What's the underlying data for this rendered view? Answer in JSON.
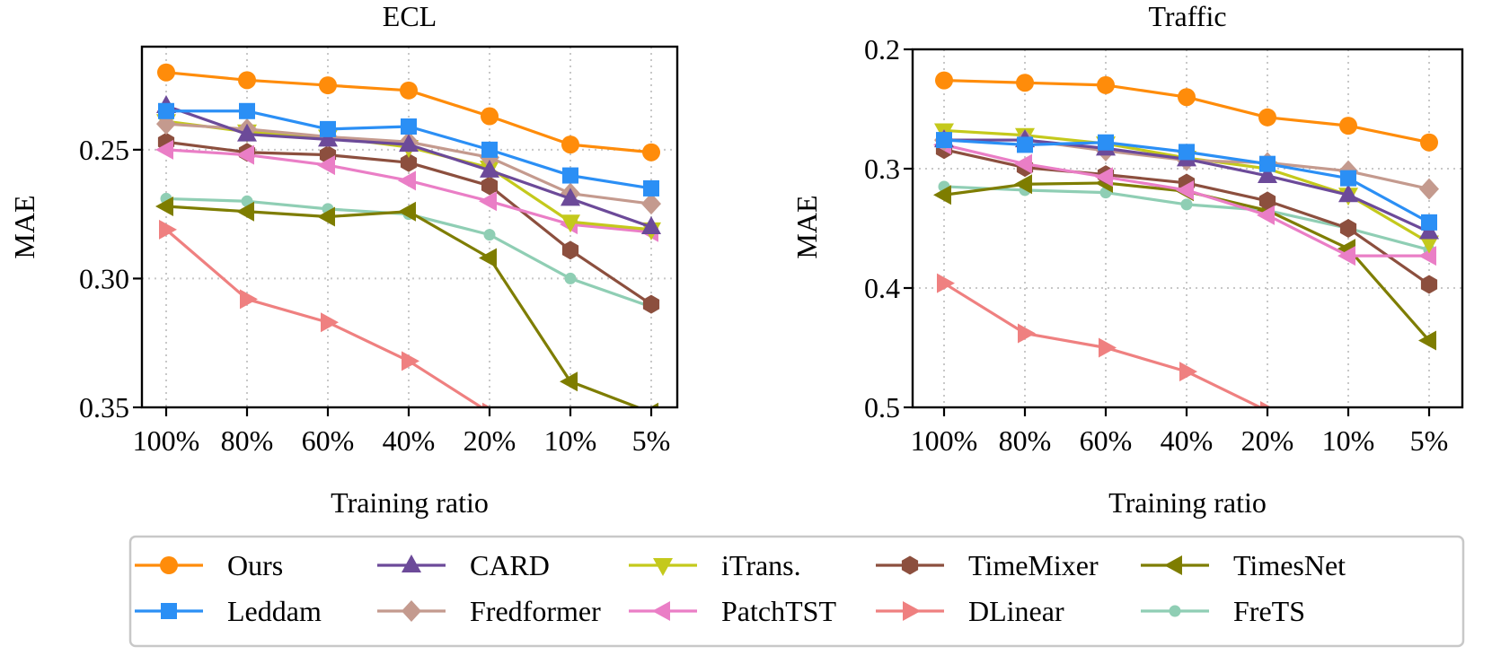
{
  "figure": {
    "categories": [
      "100%",
      "80%",
      "60%",
      "40%",
      "20%",
      "10%",
      "5%"
    ],
    "xlabel": "Training ratio",
    "ylabel": "MAE"
  },
  "series_styles": [
    {
      "name": "Ours",
      "color": "#ff8c0a",
      "marker": "circle"
    },
    {
      "name": "Leddam",
      "color": "#2b8ff5",
      "marker": "square"
    },
    {
      "name": "CARD",
      "color": "#6c4a99",
      "marker": "triangle-up"
    },
    {
      "name": "Fredformer",
      "color": "#c49a8e",
      "marker": "diamond"
    },
    {
      "name": "iTrans.",
      "color": "#c4c91c",
      "marker": "triangle-down"
    },
    {
      "name": "PatchTST",
      "color": "#ea7ec6",
      "marker": "triangle-left"
    },
    {
      "name": "TimeMixer",
      "color": "#8c4f3e",
      "marker": "hexagon"
    },
    {
      "name": "DLinear",
      "color": "#ef8080",
      "marker": "triangle-right"
    },
    {
      "name": "TimesNet",
      "color": "#7e7d00",
      "marker": "triangle-left"
    },
    {
      "name": "FreTS",
      "color": "#8fceb4",
      "marker": "small-circle"
    }
  ],
  "legend": {
    "position": "bottom-center",
    "columns": 5,
    "labels": [
      "Ours",
      "Leddam",
      "CARD",
      "Fredformer",
      "iTrans.",
      "PatchTST",
      "TimeMixer",
      "DLinear",
      "TimesNet",
      "FreTS"
    ]
  },
  "chart_data": [
    {
      "type": "line",
      "title": "ECL",
      "xlabel": "Training ratio",
      "ylabel": "MAE",
      "y_inverted": true,
      "ylim": [
        0.35,
        0.21
      ],
      "yticks": [
        0.25,
        0.3,
        0.35
      ],
      "ytick_labels": [
        "0.25",
        "0.30",
        "0.35"
      ],
      "grid": true,
      "categories": [
        "100%",
        "80%",
        "60%",
        "40%",
        "20%",
        "10%",
        "5%"
      ],
      "series": [
        {
          "name": "Ours",
          "values": [
            0.22,
            0.223,
            0.225,
            0.227,
            0.237,
            0.248,
            0.251
          ]
        },
        {
          "name": "Leddam",
          "values": [
            0.235,
            0.235,
            0.242,
            0.241,
            0.25,
            0.26,
            0.265
          ]
        },
        {
          "name": "CARD",
          "values": [
            0.233,
            0.244,
            0.246,
            0.248,
            0.258,
            0.269,
            0.28
          ]
        },
        {
          "name": "Fredformer",
          "values": [
            0.24,
            0.242,
            0.245,
            0.247,
            0.253,
            0.267,
            0.271
          ]
        },
        {
          "name": "iTrans.",
          "values": [
            0.239,
            0.243,
            0.245,
            0.249,
            0.257,
            0.278,
            0.281
          ]
        },
        {
          "name": "PatchTST",
          "values": [
            0.25,
            0.252,
            0.256,
            0.262,
            0.27,
            0.279,
            0.282
          ]
        },
        {
          "name": "TimeMixer",
          "values": [
            0.247,
            0.251,
            0.252,
            0.255,
            0.264,
            0.289,
            0.31
          ]
        },
        {
          "name": "DLinear",
          "values": [
            0.281,
            0.308,
            0.317,
            0.332,
            0.352,
            null,
            null
          ]
        },
        {
          "name": "TimesNet",
          "values": [
            0.272,
            0.274,
            0.276,
            0.274,
            0.292,
            0.34,
            0.352
          ]
        },
        {
          "name": "FreTS",
          "values": [
            0.269,
            0.27,
            0.273,
            0.275,
            0.283,
            0.3,
            0.311
          ]
        }
      ]
    },
    {
      "type": "line",
      "title": "Traffic",
      "xlabel": "Training ratio",
      "ylabel": "MAE",
      "y_inverted": true,
      "ylim": [
        0.5,
        0.2
      ],
      "yticks": [
        0.2,
        0.3,
        0.4,
        0.5
      ],
      "ytick_labels": [
        "0.2",
        "0.3",
        "0.4",
        "0.5"
      ],
      "grid": true,
      "categories": [
        "100%",
        "80%",
        "60%",
        "40%",
        "20%",
        "10%",
        "5%"
      ],
      "series": [
        {
          "name": "Ours",
          "values": [
            0.226,
            0.228,
            0.23,
            0.24,
            0.257,
            0.264,
            0.278
          ]
        },
        {
          "name": "Leddam",
          "values": [
            0.276,
            0.28,
            0.278,
            0.286,
            0.296,
            0.308,
            0.345
          ]
        },
        {
          "name": "CARD",
          "values": [
            0.276,
            0.276,
            0.283,
            0.292,
            0.306,
            0.322,
            0.353
          ]
        },
        {
          "name": "Fredformer",
          "values": [
            0.276,
            0.276,
            0.285,
            0.293,
            0.295,
            0.302,
            0.317
          ]
        },
        {
          "name": "iTrans.",
          "values": [
            0.268,
            0.272,
            0.279,
            0.291,
            0.3,
            0.322,
            0.362
          ]
        },
        {
          "name": "PatchTST",
          "values": [
            0.28,
            0.296,
            0.307,
            0.318,
            0.339,
            0.373,
            0.373
          ]
        },
        {
          "name": "TimeMixer",
          "values": [
            0.284,
            0.299,
            0.305,
            0.312,
            0.327,
            0.35,
            0.397
          ]
        },
        {
          "name": "DLinear",
          "values": [
            0.396,
            0.438,
            0.45,
            0.47,
            0.503,
            null,
            null
          ]
        },
        {
          "name": "TimesNet",
          "values": [
            0.322,
            0.313,
            0.312,
            0.319,
            0.335,
            0.367,
            0.444
          ]
        },
        {
          "name": "FreTS",
          "values": [
            0.315,
            0.318,
            0.32,
            0.33,
            0.335,
            0.35,
            0.368
          ]
        }
      ]
    }
  ]
}
